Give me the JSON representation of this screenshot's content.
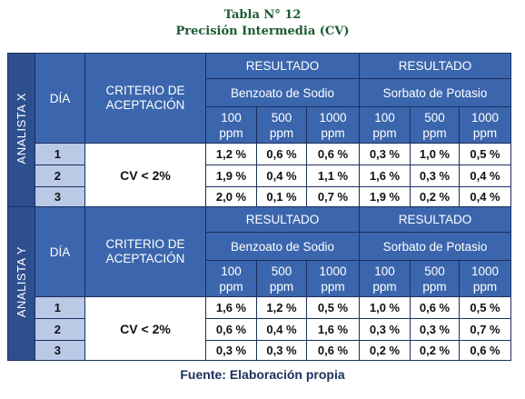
{
  "title": "Tabla N° 12",
  "subtitle": "Precisión Intermedia (CV)",
  "blocks": [
    {
      "analyst": "ANALISTA X",
      "day_header": "DÍA",
      "criterion_header": "CRITERIO DE ACEPTACIÓN",
      "result_headers": [
        "RESULTADO",
        "RESULTADO"
      ],
      "compounds": [
        "Benzoato de Sodio",
        "Sorbato de Potasio"
      ],
      "concentrations": [
        "100 ppm",
        "500 ppm",
        "1000 ppm",
        "100 ppm",
        "500 ppm",
        "1000 ppm"
      ],
      "criterion": "CV < 2%",
      "rows": [
        {
          "day": "1",
          "values": [
            "1,2 %",
            "0,6 %",
            "0,6 %",
            "0,3 %",
            "1,0 %",
            "0,5 %"
          ]
        },
        {
          "day": "2",
          "values": [
            "1,9 %",
            "0,4 %",
            "1,1 %",
            "1,6 %",
            "0,3 %",
            "0,4 %"
          ]
        },
        {
          "day": "3",
          "values": [
            "2,0 %",
            "0,1 %",
            "0,7 %",
            "1,9 %",
            "0,2 %",
            "0,4 %"
          ]
        }
      ]
    },
    {
      "analyst": "ANALISTA Y",
      "day_header": "DÍA",
      "criterion_header": "CRITERIO DE ACEPTACIÓN",
      "result_headers": [
        "RESULTADO",
        "RESULTADO"
      ],
      "compounds": [
        "Benzoato de Sodio",
        "Sorbato de Potasio"
      ],
      "concentrations": [
        "100 ppm",
        "500 ppm",
        "1000 ppm",
        "100 ppm",
        "500 ppm",
        "1000 ppm"
      ],
      "criterion": "CV < 2%",
      "rows": [
        {
          "day": "1",
          "values": [
            "1,6 %",
            "1,2 %",
            "0,5 %",
            "1,0 %",
            "0,6 %",
            "0,5 %"
          ]
        },
        {
          "day": "2",
          "values": [
            "0,6 %",
            "0,4 %",
            "1,6 %",
            "0,3 %",
            "0,3 %",
            "0,7 %"
          ]
        },
        {
          "day": "3",
          "values": [
            "0,3 %",
            "0,3 %",
            "0,6 %",
            "0,2 %",
            "0,2 %",
            "0,6 %"
          ]
        }
      ]
    }
  ],
  "footer": "Fuente: Elaboración propia"
}
